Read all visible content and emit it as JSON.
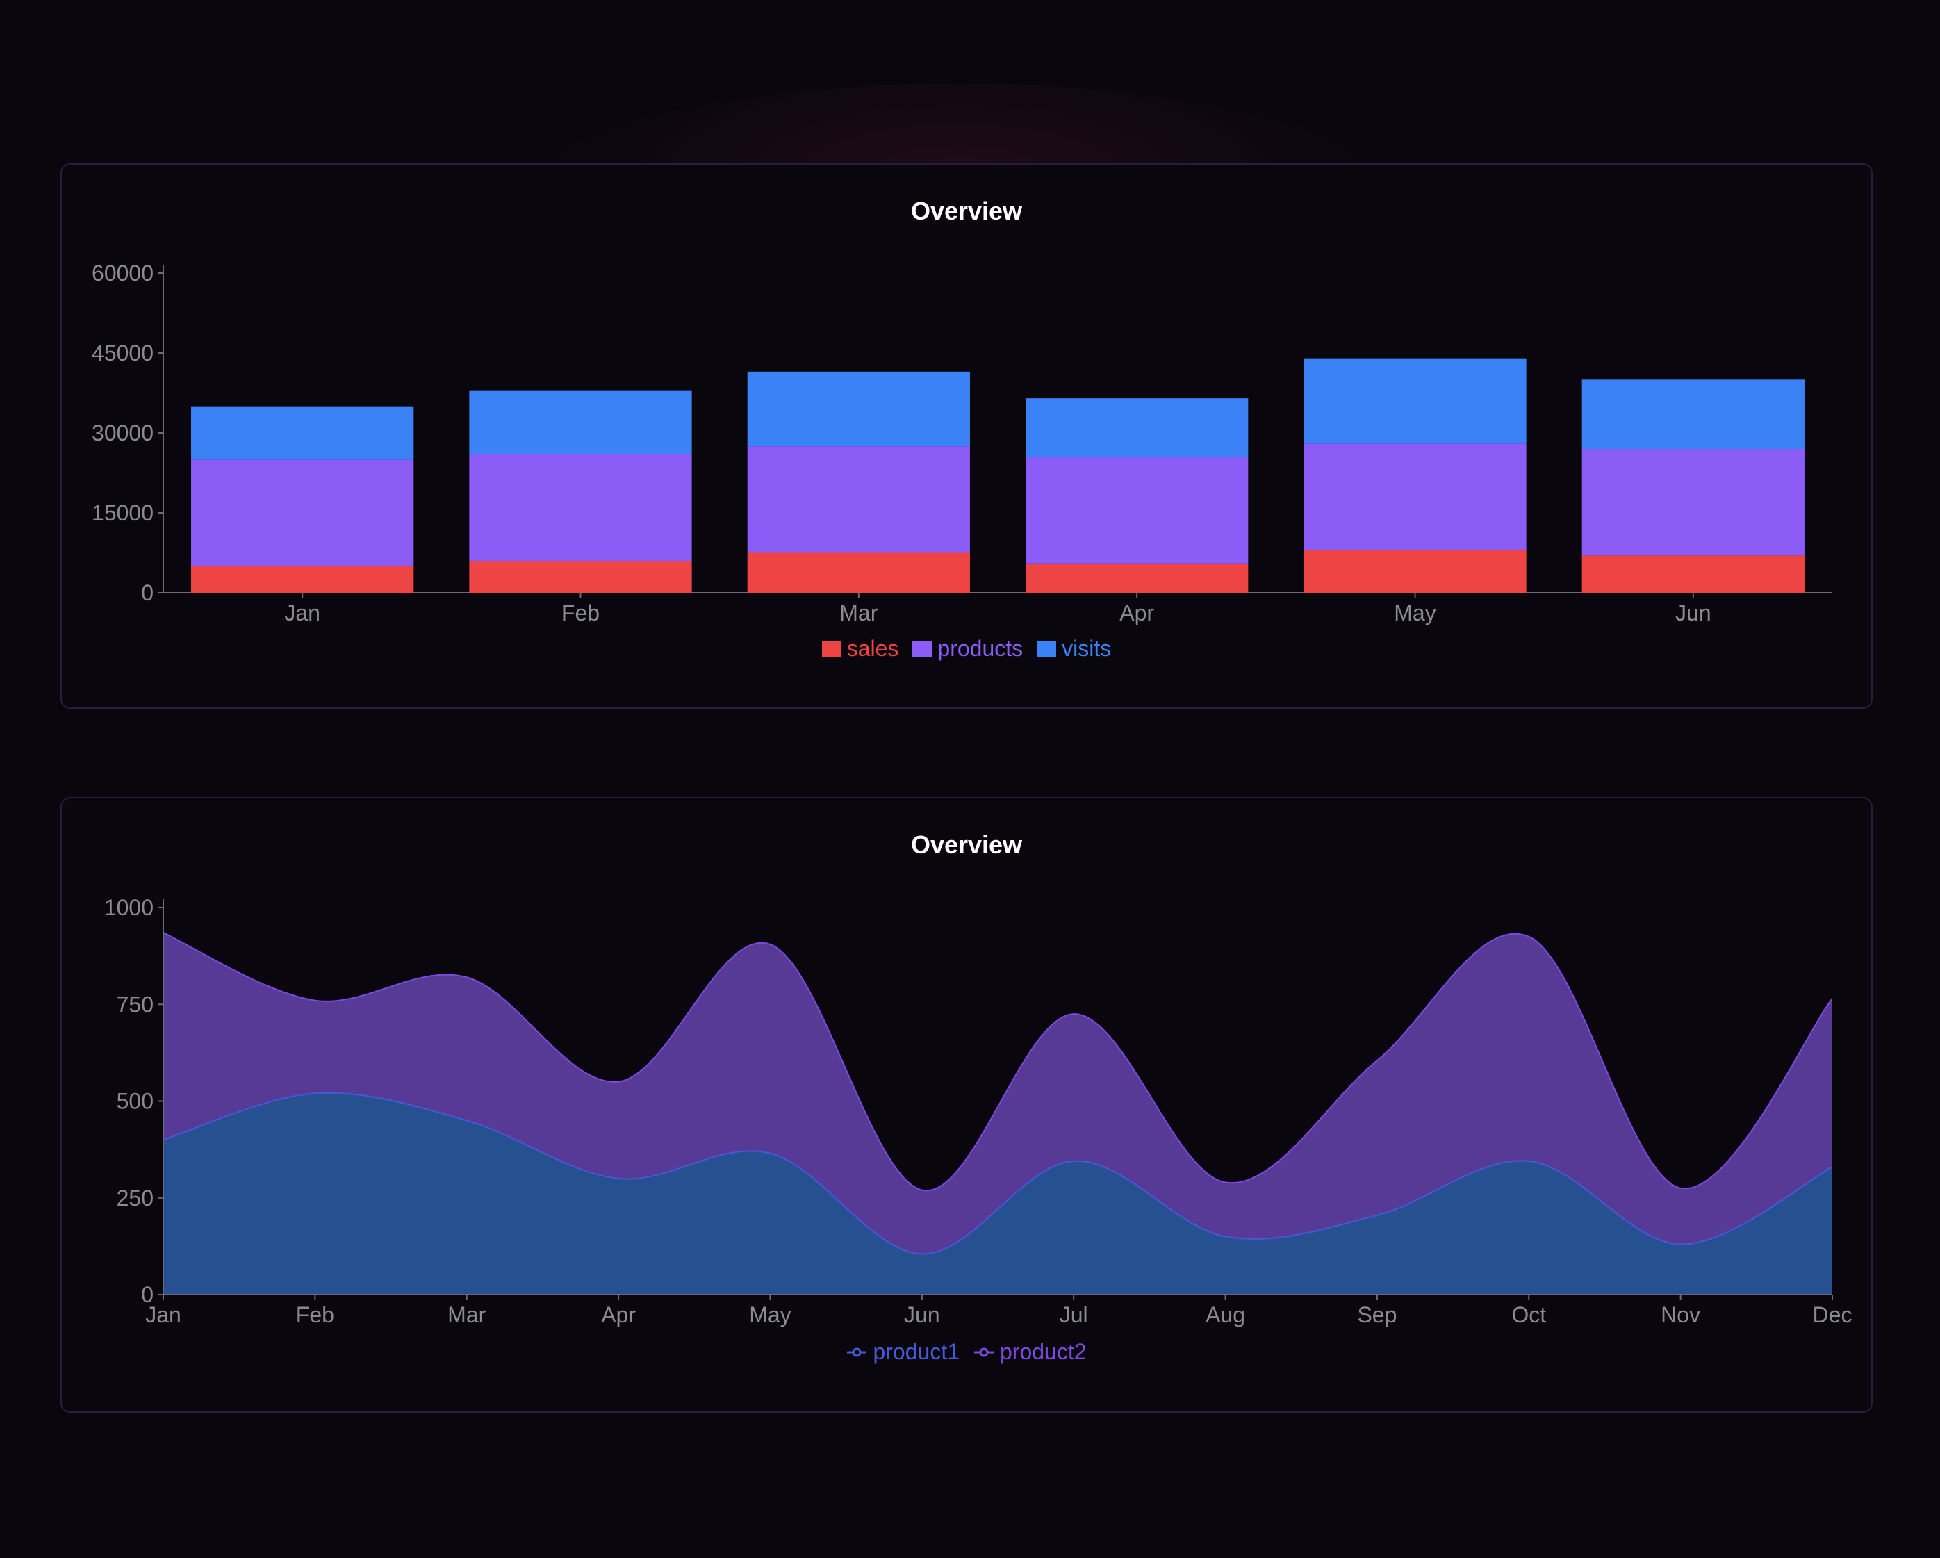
{
  "charts": [
    {
      "title": "Overview"
    },
    {
      "title": "Overview"
    }
  ],
  "chart_data": [
    {
      "type": "bar",
      "stacked": true,
      "title": "Overview",
      "categories": [
        "Jan",
        "Feb",
        "Mar",
        "Apr",
        "May",
        "Jun"
      ],
      "series": [
        {
          "name": "sales",
          "color": "#ef4444",
          "values": [
            5000,
            6000,
            7500,
            5500,
            8000,
            7000
          ]
        },
        {
          "name": "products",
          "color": "#8b5cf6",
          "values": [
            20000,
            20000,
            20000,
            20000,
            20000,
            20000
          ]
        },
        {
          "name": "visits",
          "color": "#3b82f6",
          "values": [
            10000,
            12000,
            14000,
            11000,
            16000,
            13000
          ]
        }
      ],
      "ylim": [
        0,
        60000
      ],
      "yticks": [
        "0",
        "15000",
        "30000",
        "45000",
        "60000"
      ],
      "legend": "bottom",
      "grid": false
    },
    {
      "type": "area",
      "stacked": true,
      "title": "Overview",
      "categories": [
        "Jan",
        "Feb",
        "Mar",
        "Apr",
        "May",
        "Jun",
        "Jul",
        "Aug",
        "Sep",
        "Oct",
        "Nov",
        "Dec"
      ],
      "series": [
        {
          "name": "product1",
          "color": "#4759d8",
          "values": [
            400,
            520,
            450,
            300,
            365,
            105,
            345,
            150,
            205,
            345,
            130,
            330
          ]
        },
        {
          "name": "product2",
          "color": "#7c4ae0",
          "values": [
            535,
            240,
            370,
            250,
            540,
            165,
            380,
            140,
            400,
            580,
            145,
            435
          ]
        }
      ],
      "ylim": [
        0,
        1000
      ],
      "yticks": [
        "0",
        "250",
        "500",
        "750",
        "1000"
      ],
      "legend": "bottom",
      "grid": false
    }
  ]
}
